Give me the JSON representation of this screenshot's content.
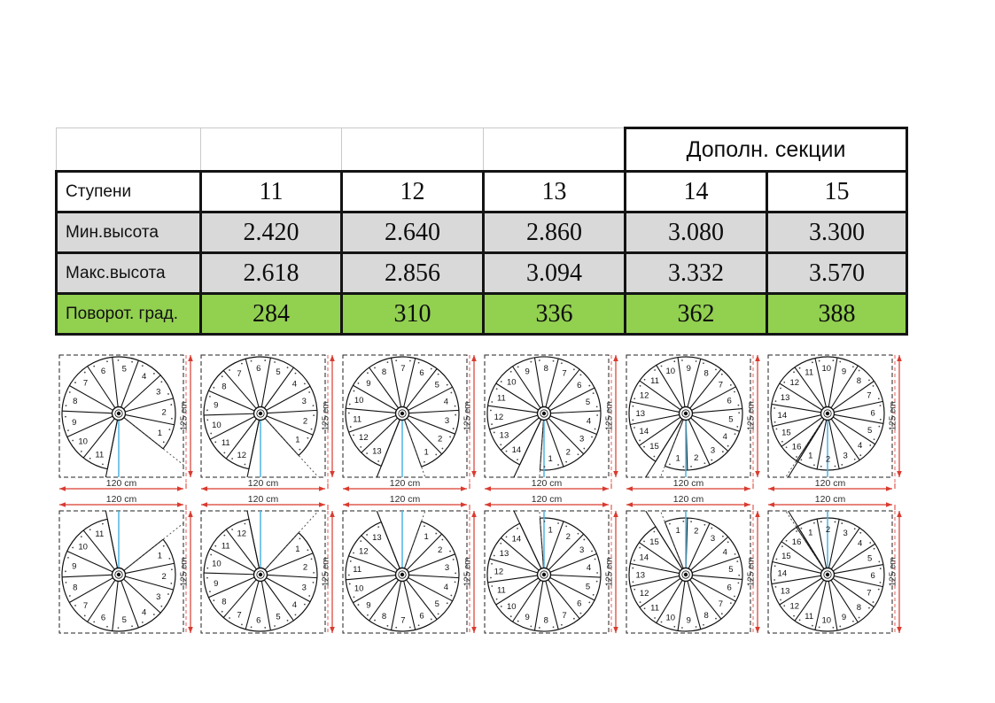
{
  "table": {
    "merged_header": "Дополн. секции",
    "columns": [
      "11",
      "12",
      "13",
      "14",
      "15"
    ],
    "rows": [
      {
        "id": "steps",
        "label": "Ступени",
        "values": [
          "11",
          "12",
          "13",
          "14",
          "15"
        ],
        "bg": "white"
      },
      {
        "id": "min-height",
        "label": "Мин.высота",
        "values": [
          "2.420",
          "2.640",
          "2.860",
          "3.080",
          "3.300"
        ],
        "bg": "gray"
      },
      {
        "id": "max-height",
        "label": "Макс.высота",
        "values": [
          "2.618",
          "2.856",
          "3.094",
          "3.332",
          "3.570"
        ],
        "bg": "gray"
      },
      {
        "id": "turn-degrees",
        "label": "Поворот. град.",
        "values": [
          "284",
          "310",
          "336",
          "362",
          "388"
        ],
        "bg": "green"
      }
    ]
  },
  "diagrams": {
    "width_label": "120 cm",
    "height_label": "125 cm",
    "rows": [
      {
        "id": "opening-down",
        "mirrored": false,
        "steps": [
          11,
          12,
          13,
          14,
          15,
          16
        ]
      },
      {
        "id": "opening-up",
        "mirrored": true,
        "steps": [
          11,
          12,
          13,
          14,
          15,
          16
        ]
      }
    ]
  },
  "colors": {
    "table_gray": "#d9d9d9",
    "table_green": "#92d050",
    "dim_red": "#d93b2f",
    "pole_blue": "#4fb3e2",
    "line_black": "#141414",
    "dim_text": "#2b2b2b"
  }
}
